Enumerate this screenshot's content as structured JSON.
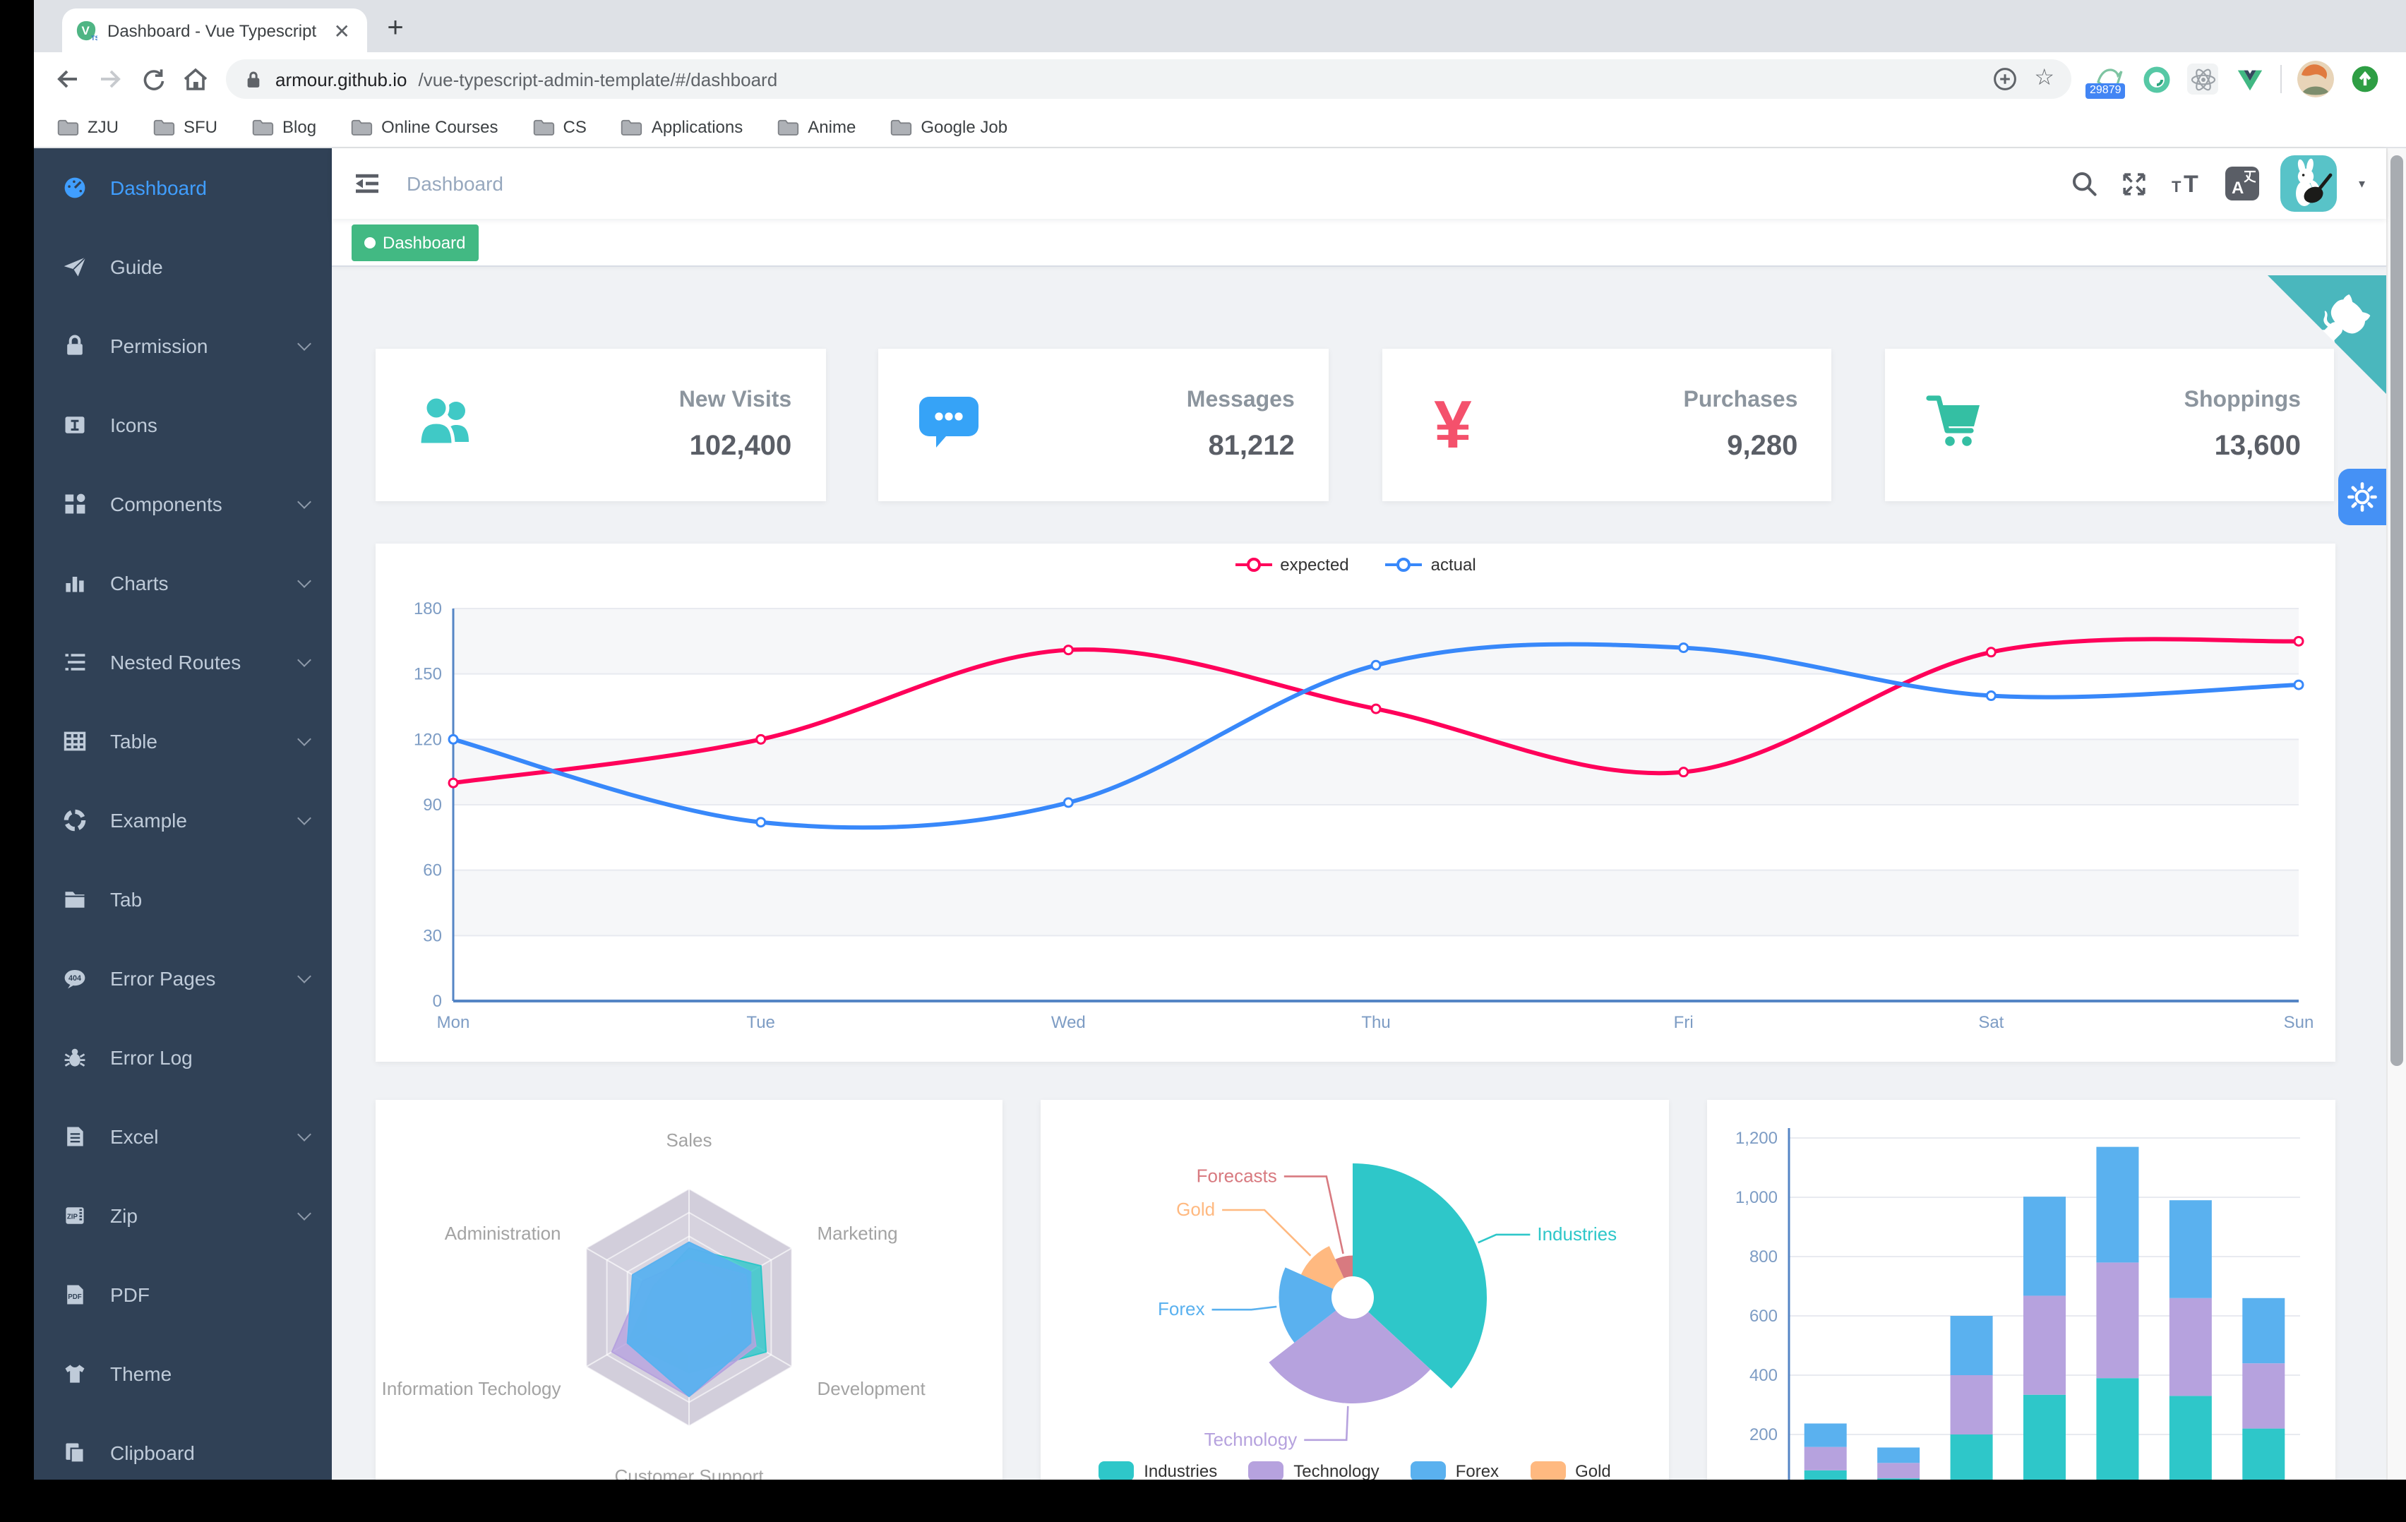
{
  "browser": {
    "tab_title": "Dashboard - Vue Typescript Ad",
    "tab_close_glyph": "✕",
    "new_tab_label": "+",
    "url_host": "armour.github.io",
    "url_path": "/vue-typescript-admin-template/#/dashboard",
    "extension_badge": "29879",
    "glyphs": {
      "back": "←",
      "forward": "→",
      "caret": "▾",
      "star": "☆"
    },
    "bookmarks": [
      "ZJU",
      "SFU",
      "Blog",
      "Online Courses",
      "CS",
      "Applications",
      "Anime",
      "Google Job"
    ]
  },
  "app": {
    "breadcrumb": "Dashboard",
    "active_tag": "Dashboard",
    "sidebar": [
      {
        "label": "Dashboard",
        "icon": "dashboard",
        "active": true,
        "arrow": false
      },
      {
        "label": "Guide",
        "icon": "guide",
        "active": false,
        "arrow": false
      },
      {
        "label": "Permission",
        "icon": "permission",
        "active": false,
        "arrow": true
      },
      {
        "label": "Icons",
        "icon": "icons",
        "active": false,
        "arrow": false
      },
      {
        "label": "Components",
        "icon": "component",
        "active": false,
        "arrow": true
      },
      {
        "label": "Charts",
        "icon": "chart",
        "active": false,
        "arrow": true
      },
      {
        "label": "Nested Routes",
        "icon": "nested",
        "active": false,
        "arrow": true
      },
      {
        "label": "Table",
        "icon": "table",
        "active": false,
        "arrow": true
      },
      {
        "label": "Example",
        "icon": "example",
        "active": false,
        "arrow": true
      },
      {
        "label": "Tab",
        "icon": "tab",
        "active": false,
        "arrow": false
      },
      {
        "label": "Error Pages",
        "icon": "e404",
        "active": false,
        "arrow": true
      },
      {
        "label": "Error Log",
        "icon": "bug",
        "active": false,
        "arrow": false
      },
      {
        "label": "Excel",
        "icon": "excel",
        "active": false,
        "arrow": true
      },
      {
        "label": "Zip",
        "icon": "zip",
        "active": false,
        "arrow": true
      },
      {
        "label": "PDF",
        "icon": "pdf",
        "active": false,
        "arrow": false
      },
      {
        "label": "Theme",
        "icon": "theme",
        "active": false,
        "arrow": false
      },
      {
        "label": "Clipboard",
        "icon": "clipboard",
        "active": false,
        "arrow": false
      }
    ],
    "stats": [
      {
        "title": "New Visits",
        "value": "102,400",
        "icon": "peoples",
        "color": "#40C9C6"
      },
      {
        "title": "Messages",
        "value": "81,212",
        "icon": "message",
        "color": "#36A3F7"
      },
      {
        "title": "Purchases",
        "value": "9,280",
        "icon": "money",
        "color": "#F4516C"
      },
      {
        "title": "Shoppings",
        "value": "13,600",
        "icon": "shopping",
        "color": "#34BFA3"
      }
    ]
  },
  "colors": {
    "sidebar_bg": "#304156",
    "sidebar_text": "#BFCBD9",
    "active_item": "#409EFF",
    "tag_green": "#42B983",
    "ribbon_teal": "#4AB7BD",
    "gear_button_blue": "#4591F5",
    "content_bg": "#F0F2F5",
    "axis_blue": "#5585C5",
    "axis_label": "#7D9CC4"
  },
  "chart_data": [
    {
      "type": "line",
      "title": "",
      "x": [
        "Mon",
        "Tue",
        "Wed",
        "Thu",
        "Fri",
        "Sat",
        "Sun"
      ],
      "ylim": [
        0,
        180
      ],
      "yticks": [
        0,
        30,
        60,
        90,
        120,
        150,
        180
      ],
      "grid": true,
      "legend_position": "top-center",
      "legend": [
        "expected",
        "actual"
      ],
      "series": [
        {
          "name": "expected",
          "color": "#FF005A",
          "values": [
            100,
            120,
            161,
            134,
            105,
            160,
            165
          ]
        },
        {
          "name": "actual",
          "color": "#3888FA",
          "values": [
            120,
            82,
            91,
            154,
            162,
            140,
            145
          ]
        }
      ]
    },
    {
      "type": "radar",
      "indicators": [
        {
          "name": "Sales",
          "max": 10000
        },
        {
          "name": "Administration",
          "max": 20000
        },
        {
          "name": "Information Techology",
          "max": 20000
        },
        {
          "name": "Customer Support",
          "max": 20000
        },
        {
          "name": "Development",
          "max": 20000
        },
        {
          "name": "Marketing",
          "max": 20000
        }
      ],
      "series": [
        {
          "color": "#2EC7C9",
          "values": [
            5000,
            7000,
            12000,
            11000,
            15000,
            14000
          ]
        },
        {
          "color": "#B6A2DE",
          "values": [
            4000,
            9000,
            15000,
            15000,
            13000,
            11000
          ]
        },
        {
          "color": "#5AB1EF",
          "values": [
            5500,
            11000,
            12000,
            15000,
            12000,
            12000
          ]
        }
      ]
    },
    {
      "type": "pie",
      "rose": true,
      "items": [
        {
          "label": "Industries",
          "value": 320,
          "color": "#2EC7C9"
        },
        {
          "label": "Technology",
          "value": 240,
          "color": "#B6A2DE"
        },
        {
          "label": "Forex",
          "value": 149,
          "color": "#5AB1EF"
        },
        {
          "label": "Gold",
          "value": 100,
          "color": "#FFB980"
        },
        {
          "label": "Forecasts",
          "value": 59,
          "color": "#D87A80"
        }
      ],
      "legend": [
        "Industries",
        "Technology",
        "Forex",
        "Gold"
      ]
    },
    {
      "type": "bar",
      "stacked": true,
      "ylim": [
        0,
        1200
      ],
      "ytick_labels": [
        "200",
        "400",
        "600",
        "800",
        "1,000",
        "1,200"
      ],
      "num_bars": 7,
      "categories": [],
      "series": [
        {
          "color": "#2EC7C9",
          "values": [
            79,
            52,
            200,
            334,
            390,
            330,
            220
          ]
        },
        {
          "color": "#B6A2DE",
          "values": [
            79,
            52,
            200,
            334,
            390,
            330,
            220
          ]
        },
        {
          "color": "#5AB1EF",
          "values": [
            79,
            52,
            200,
            334,
            390,
            330,
            220
          ]
        }
      ]
    }
  ]
}
